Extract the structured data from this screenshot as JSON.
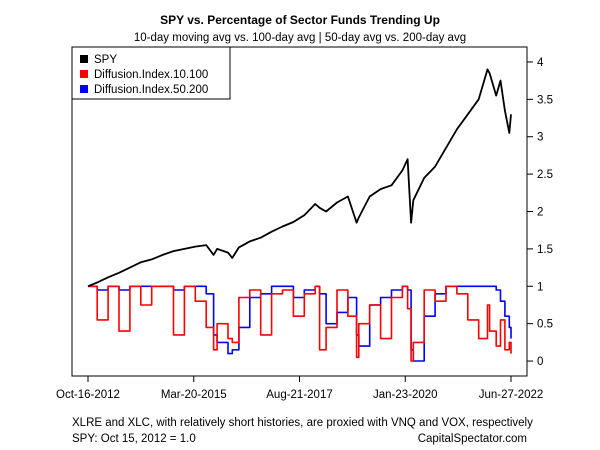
{
  "chart_data": {
    "type": "line",
    "title": "SPY vs. Percentage of Sector Funds Trending Up",
    "subtitle": "10-day moving avg vs. 100-day avg | 50-day avg vs. 200-day avg",
    "x_tick_labels": [
      "Oct-16-2012",
      "Mar-20-2015",
      "Aug-21-2017",
      "Jan-23-2020",
      "Jun-27-2022"
    ],
    "x": [
      2012.79,
      2013.0,
      2013.25,
      2013.5,
      2013.75,
      2014.0,
      2014.25,
      2014.5,
      2014.75,
      2015.0,
      2015.25,
      2015.5,
      2015.67,
      2015.75,
      2016.0,
      2016.1,
      2016.25,
      2016.5,
      2016.75,
      2017.0,
      2017.25,
      2017.5,
      2017.75,
      2018.0,
      2018.1,
      2018.25,
      2018.5,
      2018.75,
      2018.95,
      2019.0,
      2019.25,
      2019.5,
      2019.75,
      2020.0,
      2020.12,
      2020.2,
      2020.25,
      2020.5,
      2020.75,
      2021.0,
      2021.25,
      2021.5,
      2021.75,
      2021.95,
      2022.0,
      2022.15,
      2022.25,
      2022.35,
      2022.45,
      2022.49
    ],
    "y_ticks": [
      0,
      0.5,
      1,
      1.5,
      2,
      2.5,
      3,
      3.5,
      4
    ],
    "ylim": [
      -0.2,
      4.2
    ],
    "legend_position": "top-left",
    "series": [
      {
        "name": "SPY",
        "color": "#000000",
        "values": [
          1.0,
          1.05,
          1.12,
          1.18,
          1.25,
          1.32,
          1.36,
          1.42,
          1.47,
          1.5,
          1.53,
          1.55,
          1.42,
          1.5,
          1.45,
          1.38,
          1.52,
          1.6,
          1.65,
          1.73,
          1.8,
          1.86,
          1.95,
          2.1,
          2.05,
          2.0,
          2.12,
          2.2,
          1.85,
          1.92,
          2.2,
          2.3,
          2.35,
          2.55,
          2.7,
          1.85,
          2.15,
          2.45,
          2.6,
          2.85,
          3.1,
          3.3,
          3.5,
          3.9,
          3.85,
          3.55,
          3.75,
          3.35,
          3.05,
          3.3
        ]
      },
      {
        "name": "Diffusion.Index.10.100",
        "color": "#ff0000",
        "values": [
          1.0,
          0.55,
          1.0,
          0.4,
          1.0,
          0.75,
          1.0,
          1.0,
          0.35,
          1.0,
          0.8,
          0.45,
          0.15,
          0.5,
          0.3,
          0.25,
          0.85,
          0.95,
          0.35,
          0.9,
          0.95,
          0.6,
          0.9,
          1.0,
          0.15,
          0.45,
          0.95,
          0.6,
          0.05,
          0.5,
          0.75,
          0.3,
          0.85,
          1.0,
          0.7,
          0.0,
          0.25,
          0.95,
          0.8,
          1.0,
          0.9,
          0.55,
          0.3,
          0.75,
          0.4,
          0.2,
          0.55,
          0.15,
          0.25,
          0.1
        ]
      },
      {
        "name": "Diffusion.Index.50.200",
        "color": "#0000ff",
        "values": [
          1.0,
          0.95,
          1.0,
          0.95,
          1.0,
          1.0,
          1.0,
          1.0,
          0.95,
          1.0,
          1.0,
          0.9,
          0.35,
          0.25,
          0.1,
          0.15,
          0.45,
          0.85,
          0.9,
          1.0,
          1.0,
          0.85,
          0.95,
          1.0,
          0.9,
          0.5,
          0.65,
          0.85,
          0.35,
          0.2,
          0.75,
          0.85,
          0.95,
          1.0,
          0.95,
          0.15,
          0.0,
          0.6,
          0.9,
          1.0,
          1.0,
          1.0,
          1.0,
          1.0,
          1.0,
          0.95,
          0.8,
          0.6,
          0.45,
          0.3
        ]
      }
    ],
    "notes": {
      "line1": "XLRE and XLC, with relatively short histories, are proxied with VNQ and VOX, respectively",
      "line2_left": "SPY: Oct 15, 2012 = 1.0",
      "line2_right": "CapitalSpectator.com"
    }
  }
}
